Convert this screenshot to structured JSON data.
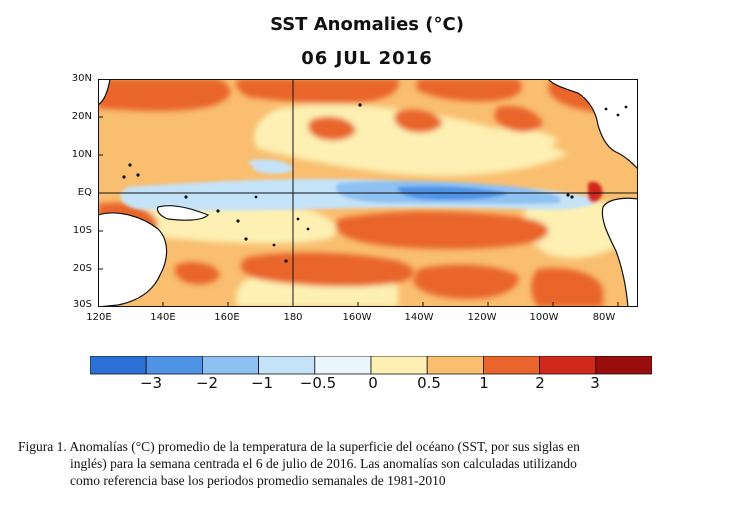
{
  "title": "SST Anomalies (°C)",
  "date": "06 JUL 2016",
  "map": {
    "y_ticks": [
      "30N",
      "20N",
      "10N",
      "EQ",
      "10S",
      "20S",
      "30S"
    ],
    "x_ticks": [
      "120E",
      "140E",
      "160E",
      "180",
      "160W",
      "140W",
      "120W",
      "100W",
      "80W"
    ]
  },
  "legend": {
    "labels": [
      "−3",
      "−2",
      "−1",
      "−0.5",
      "0",
      "0.5",
      "1",
      "2",
      "3"
    ],
    "colors": [
      "#2c6fd6",
      "#4f93e6",
      "#8ec1f2",
      "#c4e2f8",
      "#eaf6fb",
      "#fdf0b2",
      "#f9be70",
      "#e9652b",
      "#d1281b",
      "#9a0d0d"
    ]
  },
  "caption": {
    "line1": "Figura 1. Anomalías (°C) promedio de la temperatura de la superficie del océano (SST, por sus siglas en",
    "line2": "inglés) para la semana centrada el 6 de julio de 2016. Las anomalías son calculadas utilizando",
    "line3": "como referencia base los periodos promedio semanales de 1981-2010"
  }
}
